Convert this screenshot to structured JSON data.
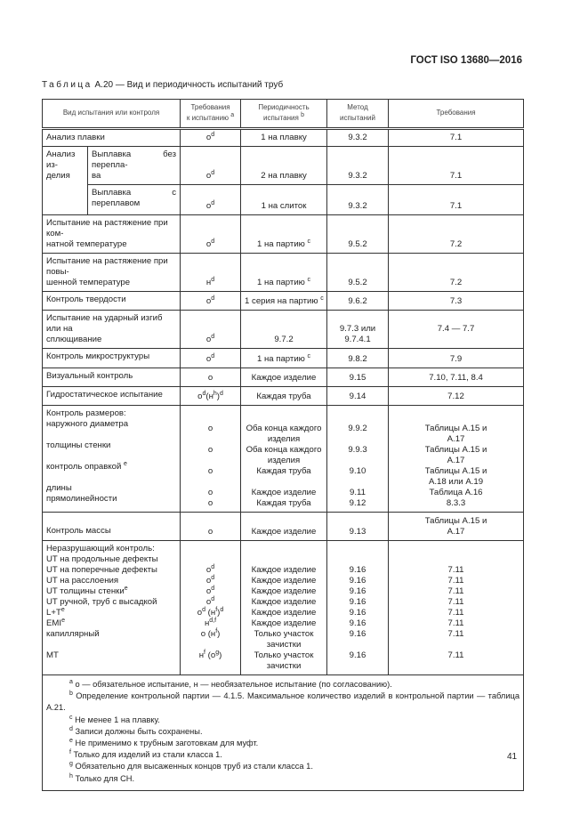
{
  "header": {
    "doc_code": "ГОСТ ISO 13680—2016"
  },
  "caption": {
    "label": "Таблица",
    "text": "А.20 — Вид и периодичность испытаний труб"
  },
  "columns": [
    [
      [
        "Вид испытания или контроля"
      ]
    ],
    [
      [
        "Требования"
      ],
      [
        "к испытанию ",
        {
          "sup": "a"
        }
      ]
    ],
    [
      [
        "Периодичность"
      ],
      [
        "испытания ",
        {
          "sup": "b"
        }
      ]
    ],
    [
      [
        "Метод"
      ],
      [
        "испытаний"
      ]
    ],
    [
      [
        "Требования"
      ]
    ]
  ],
  "rows": [
    {
      "label": [
        [
          "Анализ плавки"
        ]
      ],
      "cells": [
        [
          [
            "о",
            {
              "sup": "d"
            }
          ]
        ],
        [
          [
            "1 на плавку"
          ]
        ],
        [
          [
            "9.3.2"
          ]
        ],
        [
          [
            "7.1"
          ]
        ]
      ]
    },
    {
      "group": [
        [
          "Анализ из-"
        ],
        [
          "делия"
        ]
      ],
      "sub": [
        [
          "Выплавка без перепла-"
        ],
        [
          "ва"
        ]
      ],
      "cells": [
        [
          [
            "о",
            {
              "sup": "d"
            }
          ]
        ],
        [
          [
            "2 на плавку"
          ]
        ],
        [
          [
            "9.3.2"
          ]
        ],
        [
          [
            "7.1"
          ]
        ]
      ]
    },
    {
      "sub": [
        [
          "Выплавка с переплавом"
        ]
      ],
      "cells": [
        [
          [
            "о",
            {
              "sup": "d"
            }
          ]
        ],
        [
          [
            "1 на слиток"
          ]
        ],
        [
          [
            "9.3.2"
          ]
        ],
        [
          [
            "7.1"
          ]
        ]
      ]
    },
    {
      "label": [
        [
          "Испытание на растяжение при ком-"
        ],
        [
          "натной температуре"
        ]
      ],
      "cells": [
        [
          [
            "о",
            {
              "sup": "d"
            }
          ]
        ],
        [
          [
            "1 на партию ",
            {
              "sup": "c"
            }
          ]
        ],
        [
          [
            "9.5.2"
          ]
        ],
        [
          [
            "7.2"
          ]
        ]
      ]
    },
    {
      "label": [
        [
          "Испытание на растяжение при повы-"
        ],
        [
          "шенной температуре"
        ]
      ],
      "cells": [
        [
          [
            "н",
            {
              "sup": "d"
            }
          ]
        ],
        [
          [
            "1 на партию ",
            {
              "sup": "c"
            }
          ]
        ],
        [
          [
            "9.5.2"
          ]
        ],
        [
          [
            "7.2"
          ]
        ]
      ]
    },
    {
      "label": [
        [
          "Контроль твердости"
        ]
      ],
      "cells": [
        [
          [
            "о",
            {
              "sup": "d"
            }
          ]
        ],
        [
          [
            "1 серия на партию ",
            {
              "sup": "c"
            }
          ]
        ],
        [
          [
            "9.6.2"
          ]
        ],
        [
          [
            "7.3"
          ]
        ]
      ]
    },
    {
      "label": [
        [
          "Испытание на ударный изгиб или на"
        ],
        [
          "сплющивание"
        ]
      ],
      "cells": [
        [
          [
            "о",
            {
              "sup": "d"
            }
          ]
        ],
        [
          [
            "9.7.2"
          ]
        ],
        [
          [
            "9.7.3 или"
          ],
          [
            "9.7.4.1"
          ]
        ],
        [
          [
            "7.4 — 7.7"
          ],
          [
            ""
          ]
        ]
      ]
    },
    {
      "label": [
        [
          "Контроль микроструктуры"
        ]
      ],
      "cells": [
        [
          [
            "о",
            {
              "sup": "d"
            }
          ]
        ],
        [
          [
            "1 на партию ",
            {
              "sup": "c"
            }
          ]
        ],
        [
          [
            "9.8.2"
          ]
        ],
        [
          [
            "7.9"
          ]
        ]
      ]
    },
    {
      "label": [
        [
          "Визуальный контроль"
        ]
      ],
      "cells": [
        [
          [
            "о"
          ]
        ],
        [
          [
            "Каждое изделие"
          ]
        ],
        [
          [
            "9.15"
          ]
        ],
        [
          [
            "7.10, 7.11, 8.4"
          ]
        ]
      ]
    },
    {
      "label": [
        [
          "Гидростатическое испытание"
        ]
      ],
      "cells": [
        [
          [
            "о",
            {
              "sup": "d"
            },
            "(н",
            {
              "sup": "h"
            },
            ")",
            {
              "sup": "d"
            }
          ]
        ],
        [
          [
            "Каждая труба"
          ]
        ],
        [
          [
            "9.14"
          ]
        ],
        [
          [
            "7.12"
          ]
        ]
      ]
    },
    {
      "label": [
        [
          "Контроль размеров:"
        ],
        [
          "наружного диаметра"
        ],
        [
          ""
        ],
        [
          "толщины стенки"
        ],
        [
          ""
        ],
        [
          "контроль оправкой ",
          {
            "sup": "e"
          }
        ],
        [
          ""
        ],
        [
          "длины"
        ],
        [
          "прямолинейности"
        ]
      ],
      "cells": [
        [
          [
            ""
          ],
          [
            "о"
          ],
          [
            ""
          ],
          [
            "о"
          ],
          [
            ""
          ],
          [
            "о"
          ],
          [
            ""
          ],
          [
            "о"
          ],
          [
            "о"
          ]
        ],
        [
          [
            ""
          ],
          [
            "Оба конца каждого"
          ],
          [
            "изделия"
          ],
          [
            "Оба конца каждого"
          ],
          [
            "изделия"
          ],
          [
            "Каждая труба"
          ],
          [
            ""
          ],
          [
            "Каждое изделие"
          ],
          [
            "Каждая труба"
          ]
        ],
        [
          [
            ""
          ],
          [
            "9.9.2"
          ],
          [
            ""
          ],
          [
            "9.9.3"
          ],
          [
            ""
          ],
          [
            "9.10"
          ],
          [
            ""
          ],
          [
            "9.11"
          ],
          [
            "9.12"
          ]
        ],
        [
          [
            ""
          ],
          [
            "Таблицы А.15 и"
          ],
          [
            "А.17"
          ],
          [
            "Таблицы А.15 и"
          ],
          [
            "А.17"
          ],
          [
            "Таблицы А.15 и"
          ],
          [
            "А.18 или А.19"
          ],
          [
            "Таблица А.16"
          ],
          [
            "8.3.3"
          ]
        ]
      ]
    },
    {
      "label": [
        [
          ""
        ],
        [
          "Контроль массы"
        ]
      ],
      "cells": [
        [
          [
            "о"
          ]
        ],
        [
          [
            "Каждое изделие"
          ]
        ],
        [
          [
            "9.13"
          ]
        ],
        [
          [
            "Таблицы А.15 и"
          ],
          [
            "А.17"
          ]
        ]
      ]
    },
    {
      "label": [
        [
          "Неразрушающий контроль:"
        ],
        [
          "UT на продольные дефекты"
        ],
        [
          "UT на поперечные дефекты"
        ],
        [
          "UT на расслоения"
        ],
        [
          "UT толщины стенки",
          {
            "sup": "e"
          }
        ],
        [
          "UT ручной, труб с высадкой L+T",
          {
            "sup": "e"
          }
        ],
        [
          "EMI",
          {
            "sup": "e"
          }
        ],
        [
          "капиллярный"
        ],
        [
          ""
        ],
        [
          "MT"
        ],
        [
          ""
        ]
      ],
      "cells": [
        [
          [
            ""
          ],
          [
            "о",
            {
              "sup": "d"
            }
          ],
          [
            "о",
            {
              "sup": "d"
            }
          ],
          [
            "о",
            {
              "sup": "d"
            }
          ],
          [
            "о",
            {
              "sup": "d"
            }
          ],
          [
            "о",
            {
              "sup": "d"
            },
            " (н",
            {
              "sup": "f"
            },
            ")",
            {
              "sup": "d"
            }
          ],
          [
            "н",
            {
              "sup": "d,f"
            }
          ],
          [
            "о (н",
            {
              "sup": "f"
            },
            ")"
          ],
          [
            ""
          ],
          [
            "н",
            {
              "sup": "f"
            },
            " (о",
            {
              "sup": "g"
            },
            ")"
          ],
          [
            ""
          ]
        ],
        [
          [
            ""
          ],
          [
            "Каждое изделие"
          ],
          [
            "Каждое изделие"
          ],
          [
            "Каждое изделие"
          ],
          [
            "Каждое изделие"
          ],
          [
            "Каждое изделие"
          ],
          [
            "Каждое изделие"
          ],
          [
            "Только участок"
          ],
          [
            "зачистки"
          ],
          [
            "Только участок"
          ],
          [
            "зачистки"
          ]
        ],
        [
          [
            ""
          ],
          [
            "9.16"
          ],
          [
            "9.16"
          ],
          [
            "9.16"
          ],
          [
            "9.16"
          ],
          [
            "9.16"
          ],
          [
            "9.16"
          ],
          [
            "9.16"
          ],
          [
            ""
          ],
          [
            "9.16"
          ],
          [
            ""
          ]
        ],
        [
          [
            ""
          ],
          [
            "7.11"
          ],
          [
            "7.11"
          ],
          [
            "7.11"
          ],
          [
            "7.11"
          ],
          [
            "7.11"
          ],
          [
            "7.11"
          ],
          [
            "7.11"
          ],
          [
            ""
          ],
          [
            "7.11"
          ],
          [
            ""
          ]
        ]
      ]
    }
  ],
  "footnotes": [
    [
      {
        "sup": "a"
      },
      " о — обязательное испытание, н — необязательное испытание (по согласованию)."
    ],
    [
      {
        "sup": "b"
      },
      " Определение контрольной партии — 4.1.5. Максимальное количество изделий в контрольной партии — таблица А.21."
    ],
    [
      {
        "sup": "c"
      },
      " Не менее 1 на плавку."
    ],
    [
      {
        "sup": "d"
      },
      " Записи должны быть сохранены."
    ],
    [
      {
        "sup": "e"
      },
      " Не применимо к трубным заготовкам для муфт."
    ],
    [
      {
        "sup": "f"
      },
      " Только для изделий из стали класса 1."
    ],
    [
      {
        "sup": "g"
      },
      " Обязательно для высаженных концов труб из стали класса 1."
    ],
    [
      {
        "sup": "h"
      },
      " Только для СН."
    ]
  ],
  "page_number": "41"
}
